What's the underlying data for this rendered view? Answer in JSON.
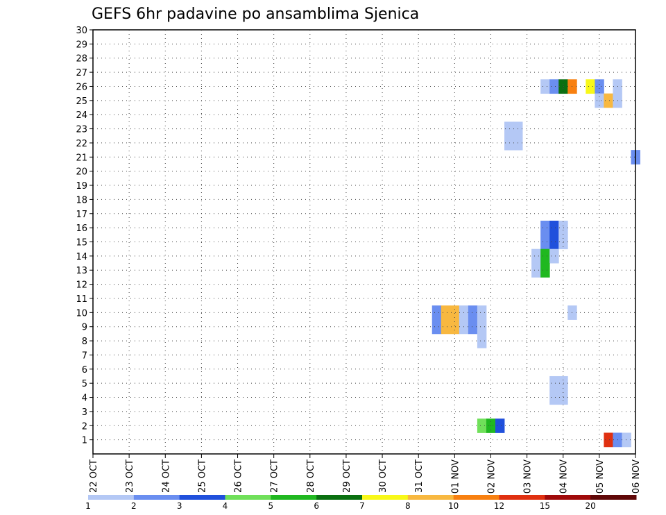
{
  "chart_data": {
    "type": "heatmap",
    "title": "GEFS 6hr padavine po ansamblima Sjenica",
    "xlabel": "",
    "ylabel": "",
    "x_ticks": [
      "22 OCT",
      "23 OCT",
      "24 OCT",
      "25 OCT",
      "26 OCT",
      "27 OCT",
      "28 OCT",
      "29 OCT",
      "30 OCT",
      "31 OCT",
      "01 NOV",
      "02 NOV",
      "03 NOV",
      "04 NOV",
      "05 NOV",
      "06 NOV"
    ],
    "xlim": [
      0,
      15
    ],
    "y_ticks": [
      1,
      2,
      3,
      4,
      5,
      6,
      7,
      8,
      9,
      10,
      11,
      12,
      13,
      14,
      15,
      16,
      17,
      18,
      19,
      20,
      21,
      22,
      23,
      24,
      25,
      26,
      27,
      28,
      29,
      30
    ],
    "ylim": [
      0,
      30
    ],
    "grid": true,
    "colorbar": {
      "placement": "bottom",
      "colors": [
        "#b4c8f5",
        "#6a8ef0",
        "#2050dc",
        "#70e05a",
        "#20b820",
        "#0a7010",
        "#f8f818",
        "#f8b840",
        "#f88010",
        "#e03010",
        "#a00a0a",
        "#600808"
      ],
      "labels": [
        "1",
        "2",
        "3",
        "4",
        "5",
        "6",
        "7",
        "8",
        "10",
        "12",
        "15",
        "20"
      ]
    },
    "cells": [
      {
        "member": 26,
        "day": 12.5,
        "bin": 1
      },
      {
        "member": 26,
        "day": 12.75,
        "bin": 2
      },
      {
        "member": 26,
        "day": 13.0,
        "bin": 6
      },
      {
        "member": 26,
        "day": 13.25,
        "bin": 9
      },
      {
        "member": 26,
        "day": 13.75,
        "bin": 7
      },
      {
        "member": 26,
        "day": 14.0,
        "bin": 2
      },
      {
        "member": 26,
        "day": 14.5,
        "bin": 1
      },
      {
        "member": 25,
        "day": 14.0,
        "bin": 1
      },
      {
        "member": 25,
        "day": 14.25,
        "bin": 8
      },
      {
        "member": 25,
        "day": 14.5,
        "bin": 1
      },
      {
        "member": 23,
        "day": 11.5,
        "bin": 1
      },
      {
        "member": 23,
        "day": 11.75,
        "bin": 1
      },
      {
        "member": 22,
        "day": 11.5,
        "bin": 1
      },
      {
        "member": 22,
        "day": 11.75,
        "bin": 1
      },
      {
        "member": 21,
        "day": 15.0,
        "bin": 2
      },
      {
        "member": 16,
        "day": 12.5,
        "bin": 2
      },
      {
        "member": 16,
        "day": 12.75,
        "bin": 3
      },
      {
        "member": 16,
        "day": 13.0,
        "bin": 1
      },
      {
        "member": 15,
        "day": 12.5,
        "bin": 2
      },
      {
        "member": 15,
        "day": 12.75,
        "bin": 3
      },
      {
        "member": 15,
        "day": 13.0,
        "bin": 1
      },
      {
        "member": 14,
        "day": 12.25,
        "bin": 1
      },
      {
        "member": 14,
        "day": 12.5,
        "bin": 5
      },
      {
        "member": 14,
        "day": 12.75,
        "bin": 1
      },
      {
        "member": 13,
        "day": 12.25,
        "bin": 1
      },
      {
        "member": 13,
        "day": 12.5,
        "bin": 5
      },
      {
        "member": 10,
        "day": 9.5,
        "bin": 2
      },
      {
        "member": 10,
        "day": 9.75,
        "bin": 8
      },
      {
        "member": 10,
        "day": 10.0,
        "bin": 8
      },
      {
        "member": 10,
        "day": 10.25,
        "bin": 1
      },
      {
        "member": 10,
        "day": 10.5,
        "bin": 2
      },
      {
        "member": 10,
        "day": 10.75,
        "bin": 1
      },
      {
        "member": 10,
        "day": 13.25,
        "bin": 1
      },
      {
        "member": 9,
        "day": 9.5,
        "bin": 2
      },
      {
        "member": 9,
        "day": 9.75,
        "bin": 8
      },
      {
        "member": 9,
        "day": 10.0,
        "bin": 8
      },
      {
        "member": 9,
        "day": 10.25,
        "bin": 1
      },
      {
        "member": 9,
        "day": 10.5,
        "bin": 2
      },
      {
        "member": 9,
        "day": 10.75,
        "bin": 1
      },
      {
        "member": 8,
        "day": 10.75,
        "bin": 1
      },
      {
        "member": 5,
        "day": 12.75,
        "bin": 1
      },
      {
        "member": 5,
        "day": 13.0,
        "bin": 1
      },
      {
        "member": 4,
        "day": 12.75,
        "bin": 1
      },
      {
        "member": 4,
        "day": 13.0,
        "bin": 1
      },
      {
        "member": 2,
        "day": 10.75,
        "bin": 4
      },
      {
        "member": 2,
        "day": 11.0,
        "bin": 5
      },
      {
        "member": 2,
        "day": 11.25,
        "bin": 3
      },
      {
        "member": 1,
        "day": 14.25,
        "bin": 10
      },
      {
        "member": 1,
        "day": 14.5,
        "bin": 2
      },
      {
        "member": 1,
        "day": 14.75,
        "bin": 1
      }
    ]
  }
}
